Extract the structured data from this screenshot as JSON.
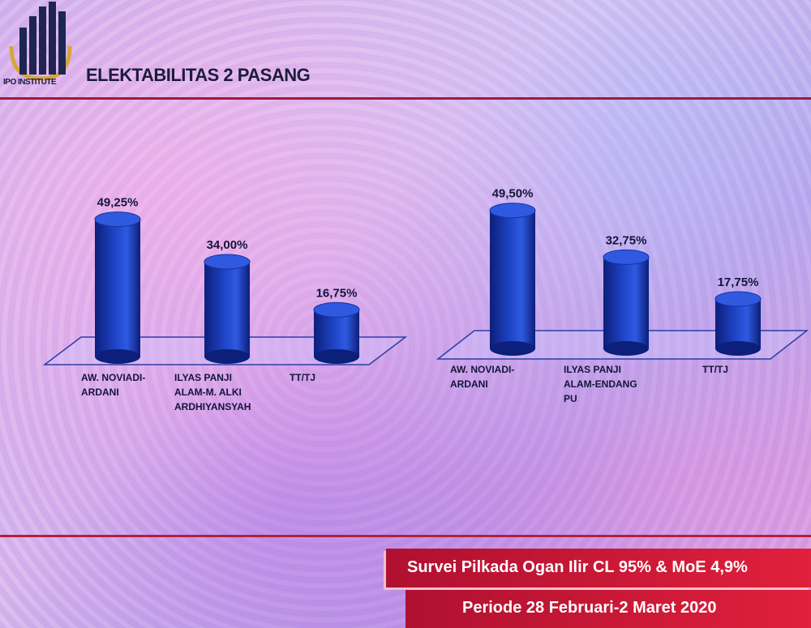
{
  "header": {
    "logo_text": "IPO INSTITUTE",
    "title": "ELEKTABILITAS 2 PASANG"
  },
  "footer": {
    "survey": "Survei Pilkada Ogan Ilir CL 95% & MoE 4,9%",
    "period": "Periode 28 Februari-2 Maret 2020"
  },
  "colors": {
    "bar": "#1f45c8",
    "bar_dark": "#0c1f7a",
    "bar_top": "#2f5ae0",
    "accent_red": "#c0183a"
  },
  "chart_data": [
    {
      "type": "bar",
      "categories": [
        "AW. NOVIADI-\nARDANI",
        "ILYAS PANJI\nALAM-M. ALKI\nARDHIYANSYAH",
        "TT/TJ"
      ],
      "values": [
        49.25,
        34.0,
        16.75
      ],
      "value_labels": [
        "49,25%",
        "34,00%",
        "16,75%"
      ],
      "ylim": [
        0,
        50
      ]
    },
    {
      "type": "bar",
      "categories": [
        "AW. NOVIADI-\nARDANI",
        "ILYAS PANJI\nALAM-ENDANG\nPU",
        "TT/TJ"
      ],
      "values": [
        49.5,
        32.75,
        17.75
      ],
      "value_labels": [
        "49,50%",
        "32,75%",
        "17,75%"
      ],
      "ylim": [
        0,
        50
      ]
    }
  ]
}
